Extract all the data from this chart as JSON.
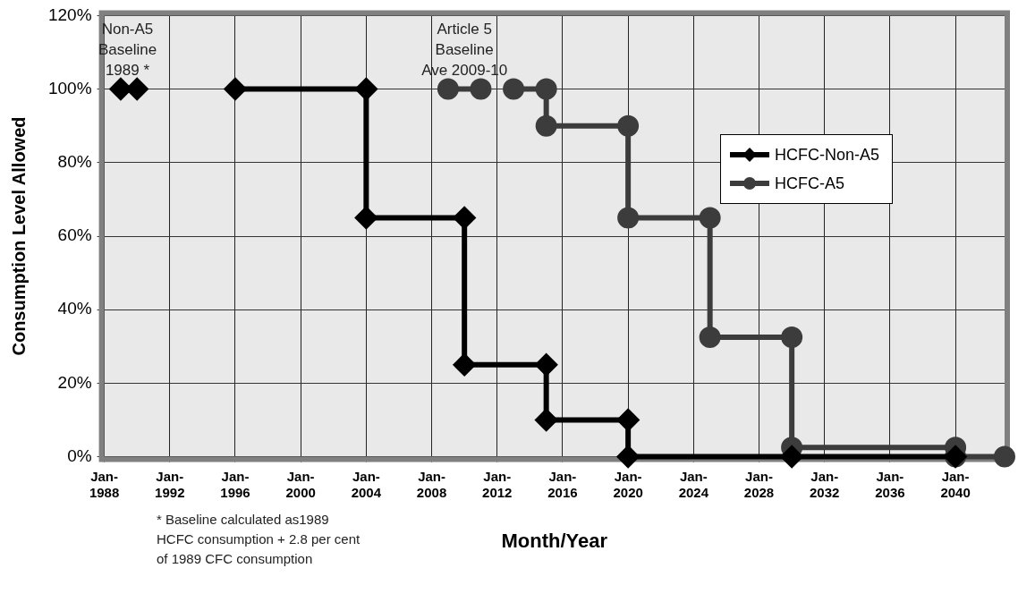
{
  "chart_data": {
    "type": "line",
    "xlabel": "Month/Year",
    "ylabel": "Consumption Level Allowed",
    "xlim": [
      "1988-01",
      "2043-01"
    ],
    "xticks": [
      {
        "value": "1988-01",
        "label": "Jan-1988"
      },
      {
        "value": "1992-01",
        "label": "Jan-1992"
      },
      {
        "value": "1996-01",
        "label": "Jan-1996"
      },
      {
        "value": "2000-01",
        "label": "Jan-2000"
      },
      {
        "value": "2004-01",
        "label": "Jan-2004"
      },
      {
        "value": "2008-01",
        "label": "Jan-2008"
      },
      {
        "value": "2012-01",
        "label": "Jan-2012"
      },
      {
        "value": "2016-01",
        "label": "Jan-2016"
      },
      {
        "value": "2020-01",
        "label": "Jan-2020"
      },
      {
        "value": "2024-01",
        "label": "Jan-2024"
      },
      {
        "value": "2028-01",
        "label": "Jan-2028"
      },
      {
        "value": "2032-01",
        "label": "Jan-2032"
      },
      {
        "value": "2036-01",
        "label": "Jan-2036"
      },
      {
        "value": "2040-01",
        "label": "Jan-2040"
      }
    ],
    "ylim": [
      0,
      120
    ],
    "yticks": [
      {
        "value": 0,
        "label": "0%"
      },
      {
        "value": 20,
        "label": "20%"
      },
      {
        "value": 40,
        "label": "40%"
      },
      {
        "value": 60,
        "label": "60%"
      },
      {
        "value": 80,
        "label": "80%"
      },
      {
        "value": 100,
        "label": "100%"
      },
      {
        "value": 120,
        "label": "120%"
      }
    ],
    "grid": true,
    "legend": "right",
    "line_style": "solid",
    "series": [
      {
        "name": "HCFC-Non-A5",
        "color": "#000000",
        "marker": "diamond",
        "x": [
          "1989-01",
          "1990-01",
          "1993-01",
          "1996-01",
          "2004-01",
          "2004-01",
          "2010-01",
          "2010-01",
          "2015-01",
          "2015-01",
          "2020-01",
          "2020-01",
          "2030-01",
          "2040-01"
        ],
        "values": [
          100,
          100,
          null,
          100,
          100,
          65,
          65,
          25,
          25,
          10,
          10,
          0,
          0,
          0
        ]
      },
      {
        "name": "HCFC-A5",
        "color": "#3c3c3c",
        "marker": "circle",
        "x": [
          "2009-01",
          "2011-01",
          "2012-01",
          "2013-01",
          "2015-01",
          "2015-01",
          "2020-01",
          "2020-01",
          "2025-01",
          "2025-01",
          "2030-01",
          "2030-01",
          "2040-01",
          "2040-01",
          "2043-01"
        ],
        "values": [
          100,
          100,
          null,
          100,
          100,
          90,
          90,
          65,
          65,
          32.5,
          32.5,
          2.5,
          2.5,
          0,
          0
        ]
      }
    ],
    "annotations": [
      {
        "text": "Non-A5\nBaseline\n1989 *",
        "x": "1989-06",
        "y": 100
      },
      {
        "text": "Article 5\nBaseline\nAve 2009-10",
        "x": "2010-01",
        "y": 100
      },
      "* Baseline calculated as1989\nHCFC consumption + 2.8 per cent\nof 1989 CFC consumption"
    ]
  }
}
